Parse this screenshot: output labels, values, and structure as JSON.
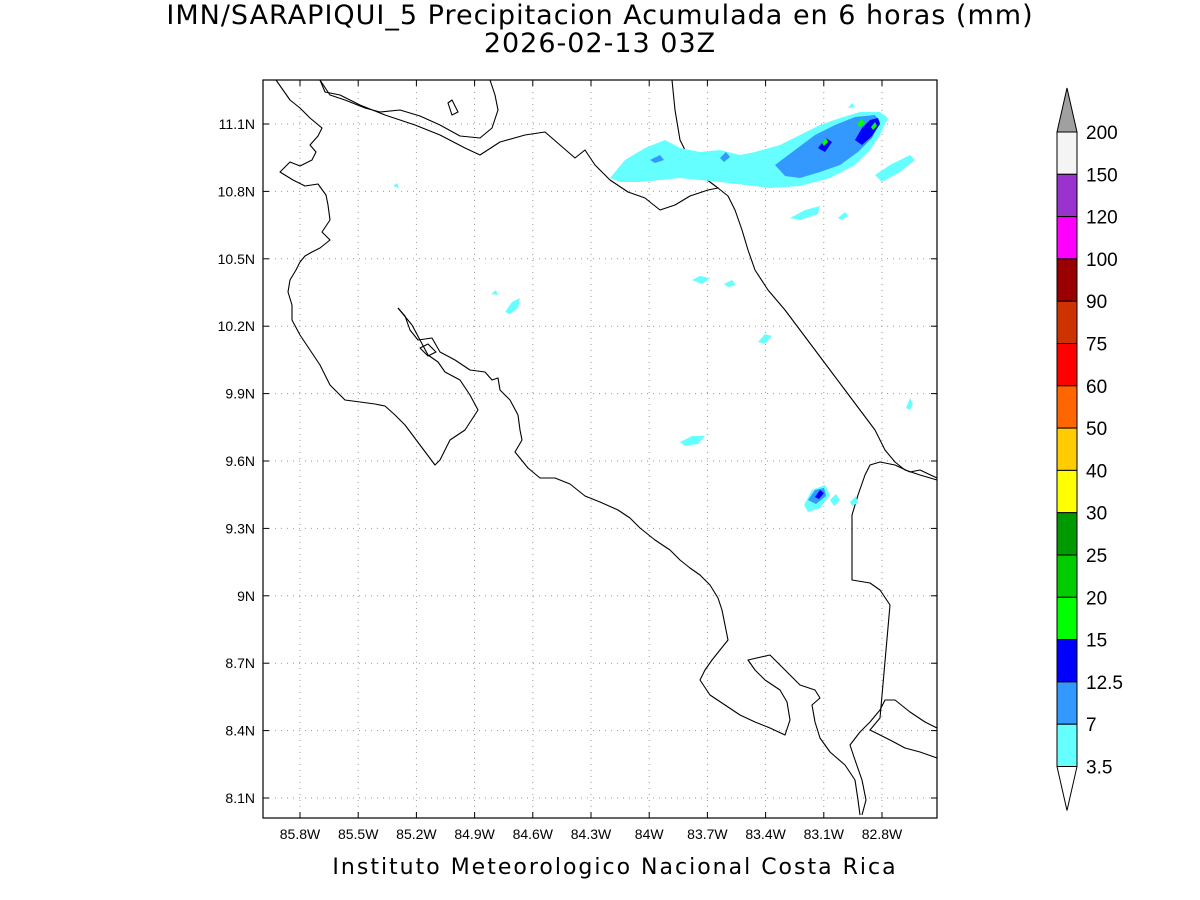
{
  "title": {
    "line1": "IMN/SARAPIQUI_5 Precipitacion Acumulada en 6 horas (mm)",
    "line2": "2026-02-13 03Z"
  },
  "footer": "Instituto Meteorologico Nacional Costa Rica",
  "axes": {
    "lon_labels": [
      "85.8W",
      "85.5W",
      "85.2W",
      "84.9W",
      "84.6W",
      "84.3W",
      "84W",
      "83.7W",
      "83.4W",
      "83.1W",
      "82.8W"
    ],
    "lat_labels": [
      "11.1N",
      "10.8N",
      "10.5N",
      "10.2N",
      "9.9N",
      "9.6N",
      "9.3N",
      "9N",
      "8.7N",
      "8.4N",
      "8.1N"
    ],
    "grid": "dotted"
  },
  "colorbar": {
    "labels": [
      "200",
      "150",
      "120",
      "100",
      "90",
      "75",
      "60",
      "50",
      "40",
      "30",
      "25",
      "20",
      "15",
      "12.5",
      "7",
      "3.5"
    ],
    "colors": [
      "#f4f4f4",
      "#9a32cd",
      "#ff00ff",
      "#990000",
      "#cc3300",
      "#ff0000",
      "#ff6600",
      "#ffcc00",
      "#ffff00",
      "#009900",
      "#00cc00",
      "#00ff00",
      "#0000ff",
      "#3399ff",
      "#66ffff"
    ],
    "top_arrow_color": "#a0a0a0",
    "bottom_arrow_color": "#ffffff"
  }
}
